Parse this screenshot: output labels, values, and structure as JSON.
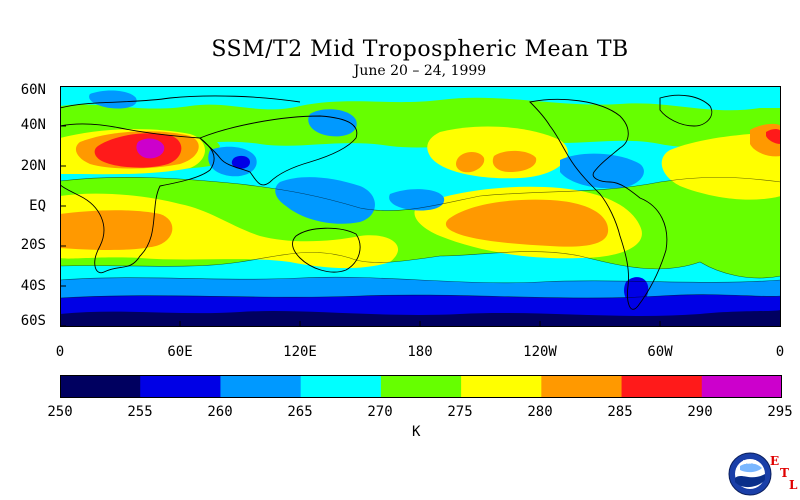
{
  "title": "SSM/T2 Mid Tropospheric Mean TB",
  "subtitle": "June 20 – 24, 1999",
  "map": {
    "lat_labels": [
      "60N",
      "40N",
      "20N",
      "EQ",
      "20S",
      "40S",
      "60S"
    ],
    "lon_labels": [
      "0",
      "60E",
      "120E",
      "180",
      "120W",
      "60W",
      "0"
    ],
    "variable": "Mid tropospheric mean brightness temperature",
    "projection": "equirectangular, 0 to 360 longitude, 60S to 60N"
  },
  "colorbar": {
    "ticks": [
      "250",
      "255",
      "260",
      "265",
      "270",
      "275",
      "280",
      "285",
      "290",
      "295"
    ],
    "units": "K",
    "colors": [
      "#000060",
      "#0000e6",
      "#0099ff",
      "#00ffff",
      "#66ff00",
      "#ffff00",
      "#ff9900",
      "#ff1a1a",
      "#cc00cc"
    ]
  },
  "logo": {
    "emblem_text": "NOAA",
    "etl_letters": [
      "E",
      "T",
      "L"
    ]
  }
}
